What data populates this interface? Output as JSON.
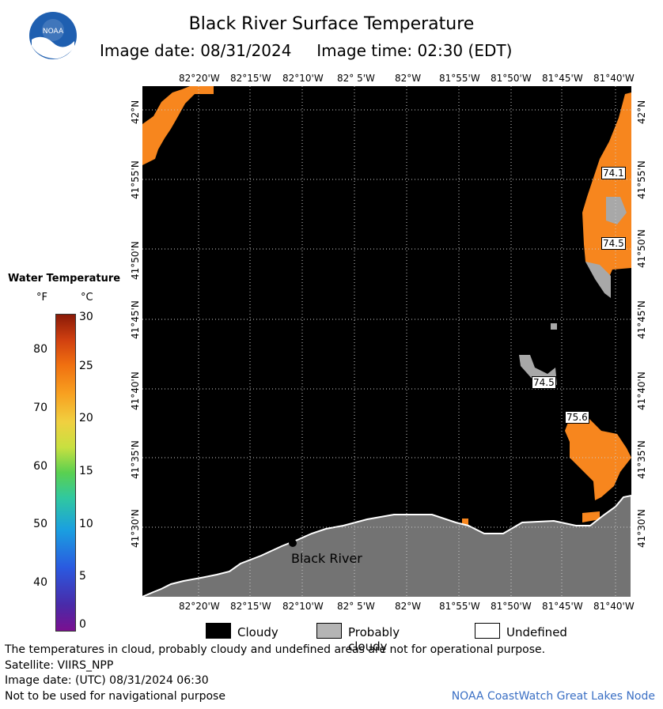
{
  "header": {
    "title": "Black River Surface Temperature",
    "subtitle": "Image date: 08/31/2024     Image time: 02:30 (EDT)",
    "logo_text": "NOAA"
  },
  "map": {
    "x_ticks": [
      "82°20'W",
      "82°15'W",
      "82°10'W",
      "82° 5'W",
      "82°W",
      "81°55'W",
      "81°50'W",
      "81°45'W",
      "81°40'W"
    ],
    "y_ticks": [
      "42°N",
      "41°55'N",
      "41°50'N",
      "41°45'N",
      "41°40'N",
      "41°35'N",
      "41°30'N"
    ],
    "place_label": "Black River",
    "temperature_labels": [
      "74.1",
      "74.5",
      "74.5",
      "75.6"
    ],
    "colors": {
      "water": "#000000",
      "land": "#737373",
      "warm_water": "#f7861e",
      "cloud": "#a8a8a8"
    }
  },
  "legend": {
    "title": "Water Temperature",
    "unit_f": "°F",
    "unit_c": "°C",
    "f_ticks": [
      "80",
      "70",
      "60",
      "50",
      "40"
    ],
    "c_ticks": [
      "30",
      "25",
      "20",
      "15",
      "10",
      "5",
      "0"
    ],
    "key": [
      {
        "label": "Cloudy",
        "color": "#000000"
      },
      {
        "label": "Probably cloudy",
        "color": "#b4b4b4"
      },
      {
        "label": "Undefined",
        "color": "#ffffff"
      }
    ]
  },
  "footer": {
    "disclaimer": "The temperatures in cloud, probably cloudy and undefined areas are not for operational purpose.",
    "satellite": "Satellite: VIIRS_NPP",
    "utc_date": "Image date: (UTC) 08/31/2024  06:30",
    "nav_warning": "Not to be used for navigational purpose",
    "credit": "NOAA CoastWatch Great Lakes Node"
  }
}
